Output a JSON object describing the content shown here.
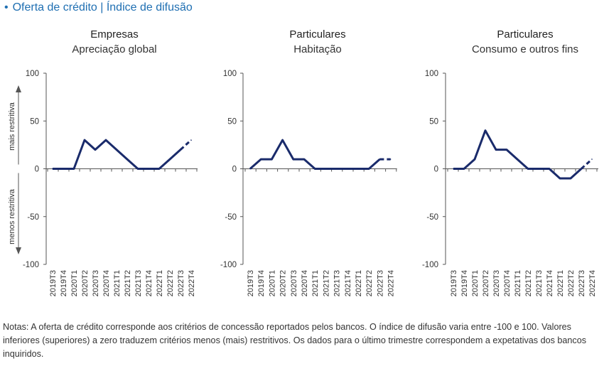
{
  "header": {
    "bullet": "•",
    "title": "Oferta de crédito | Índice de difusão"
  },
  "side_labels": {
    "upper": "mais restritiva",
    "lower": "menos restritiva"
  },
  "notes": "Notas: A oferta de crédito corresponde aos critérios de concessão reportados pelos bancos. O índice de difusão varia entre -100 e 100. Valores inferiores (superiores) a zero traduzem critérios menos (mais) restritivos. Os dados para o último trimestre correspondem a expetativas dos bancos inquiridos.",
  "line_color": "#1a2b6b",
  "chart_data": [
    {
      "type": "line",
      "title": "Empresas",
      "subtitle": "Apreciação global",
      "categories": [
        "2019T3",
        "2019T4",
        "2020T1",
        "2020T2",
        "2020T3",
        "2020T4",
        "2021T1",
        "2021T2",
        "2021T3",
        "2021T4",
        "2022T1",
        "2022T2",
        "2022T3",
        "2022T4"
      ],
      "values": [
        0,
        0,
        0,
        30,
        20,
        30,
        20,
        10,
        0,
        0,
        0,
        10,
        20,
        30
      ],
      "dashed_from_index": 12,
      "ylim": [
        -100,
        100
      ],
      "yticks": [
        100,
        50,
        0,
        -50,
        -100
      ],
      "grid": false
    },
    {
      "type": "line",
      "title": "Particulares",
      "subtitle": "Habitação",
      "categories": [
        "2019T3",
        "2019T4",
        "2020T1",
        "2020T2",
        "2020T3",
        "2020T4",
        "2021T1",
        "2021T2",
        "2021T3",
        "2021T4",
        "2022T1",
        "2022T2",
        "2022T3",
        "2022T4"
      ],
      "values": [
        0,
        10,
        10,
        30,
        10,
        10,
        0,
        0,
        0,
        0,
        0,
        0,
        10,
        10
      ],
      "dashed_from_index": 12,
      "ylim": [
        -100,
        100
      ],
      "yticks": [
        100,
        50,
        0,
        -50,
        -100
      ],
      "grid": false
    },
    {
      "type": "line",
      "title": "Particulares",
      "subtitle": "Consumo e outros fins",
      "categories": [
        "2019T3",
        "2019T4",
        "2020T1",
        "2020T2",
        "2020T3",
        "2020T4",
        "2021T1",
        "2021T2",
        "2021T3",
        "2021T4",
        "2022T1",
        "2022T2",
        "2022T3",
        "2022T4"
      ],
      "values": [
        0,
        0,
        10,
        40,
        20,
        20,
        10,
        0,
        0,
        0,
        -10,
        -10,
        0,
        10
      ],
      "dashed_from_index": 12,
      "ylim": [
        -100,
        100
      ],
      "yticks": [
        100,
        50,
        0,
        -50,
        -100
      ],
      "grid": false
    }
  ]
}
